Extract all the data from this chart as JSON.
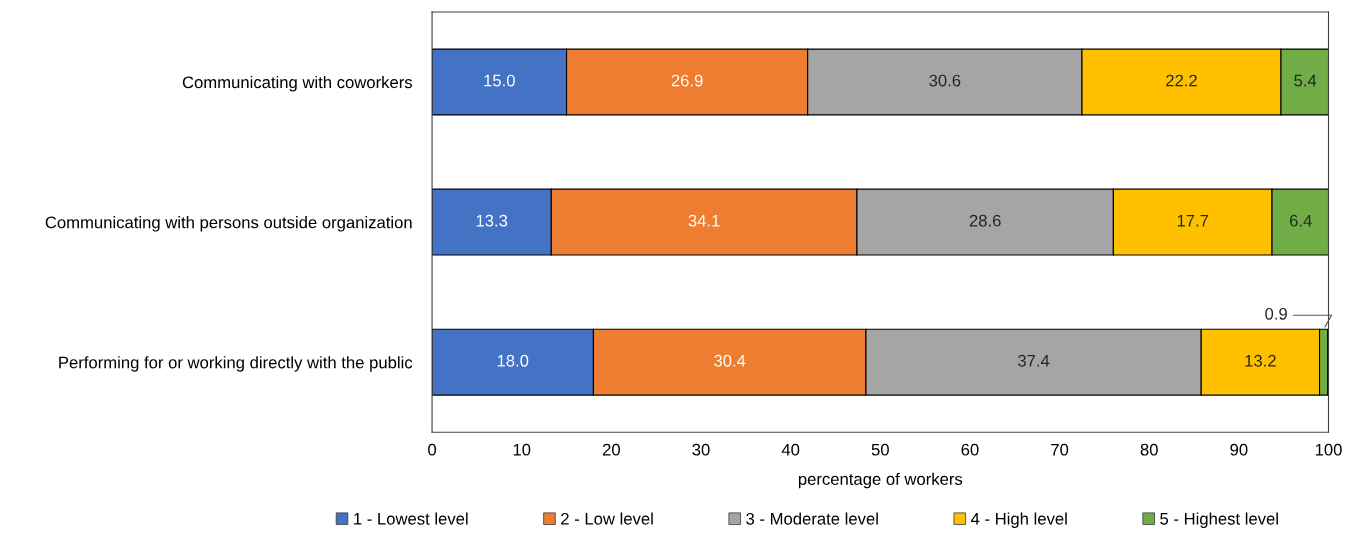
{
  "chart_data": {
    "type": "bar",
    "orientation": "horizontal",
    "stacked": true,
    "xlabel": "percentage of workers",
    "categories": [
      "Communicating with coworkers",
      "Communicating with persons outside organization",
      "Performing for or working directly with the public"
    ],
    "series": [
      {
        "name": "1 - Lowest level",
        "color": "#4472c4",
        "values": [
          15.0,
          13.3,
          18.0
        ],
        "value_labels": [
          "15.0",
          "13.3",
          "18.0"
        ]
      },
      {
        "name": "2 - Low level",
        "color": "#ed7d31",
        "values": [
          26.9,
          34.1,
          30.4
        ],
        "value_labels": [
          "26.9",
          "34.1",
          "30.4"
        ]
      },
      {
        "name": "3 - Moderate level",
        "color": "#a5a5a5",
        "values": [
          30.6,
          28.6,
          37.4
        ],
        "value_labels": [
          "30.6",
          "28.6",
          "37.4"
        ]
      },
      {
        "name": "4 - High level",
        "color": "#ffc000",
        "values": [
          22.2,
          17.7,
          13.2
        ],
        "value_labels": [
          "22.2",
          "17.7",
          "13.2"
        ]
      },
      {
        "name": "5 - Highest level",
        "color": "#70ad47",
        "values": [
          5.4,
          6.4,
          0.9
        ],
        "value_labels": [
          "5.4",
          "6.4",
          "0.9"
        ]
      }
    ],
    "xlim": [
      0,
      100
    ],
    "xticks": [
      0,
      10,
      20,
      30,
      40,
      50,
      60,
      70,
      80,
      90,
      100
    ],
    "grid": false,
    "legend": "bottom"
  }
}
